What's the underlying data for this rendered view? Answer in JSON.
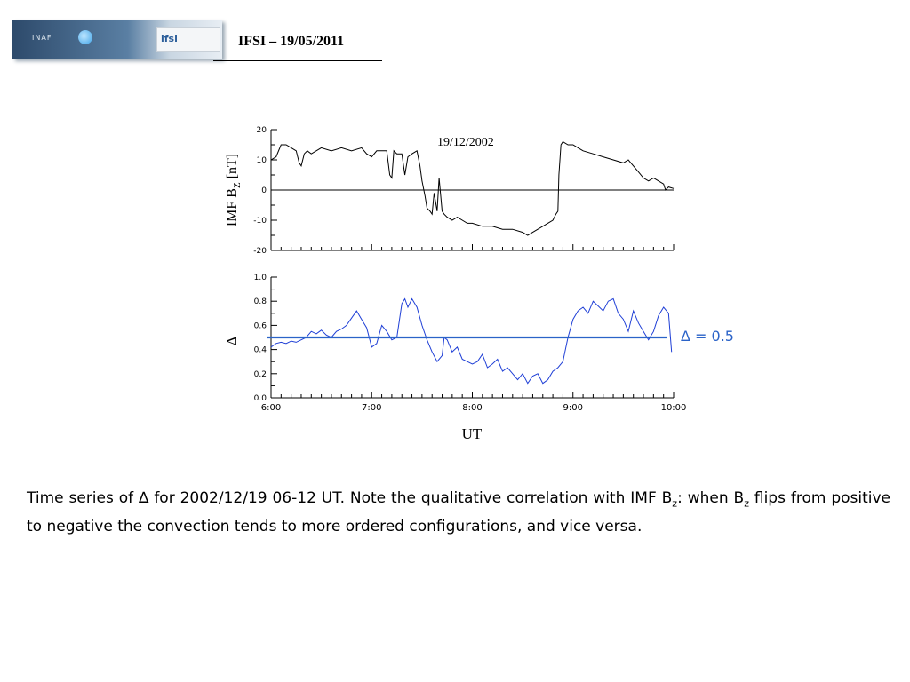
{
  "header": {
    "logo_text": "INAF",
    "logo_text2": "ifsi",
    "title": "IFSI – 19/05/2011"
  },
  "chart_data": [
    {
      "type": "line",
      "title": "19/12/2002",
      "ylabel": "IMF B",
      "ylabel_sub": "Z",
      "ylabel_unit": " [nT]",
      "ylim": [
        -20,
        20
      ],
      "yticks": [
        "20",
        "10",
        "0",
        "-10",
        "-20"
      ],
      "xlim": [
        6.0,
        10.0
      ],
      "reference_line": 0,
      "series": [
        {
          "x": [
            6.0,
            6.05,
            6.1,
            6.15,
            6.2,
            6.25,
            6.28,
            6.3,
            6.33,
            6.36,
            6.4,
            6.5,
            6.6,
            6.7,
            6.8,
            6.9,
            6.95,
            7.0,
            7.05,
            7.1,
            7.15,
            7.18,
            7.2,
            7.22,
            7.25,
            7.3,
            7.33,
            7.36,
            7.4,
            7.45,
            7.48,
            7.5,
            7.53,
            7.55,
            7.58,
            7.6,
            7.62,
            7.65,
            7.67,
            7.7,
            7.72,
            7.75,
            7.8,
            7.85,
            7.9,
            7.95,
            8.0,
            8.1,
            8.2,
            8.3,
            8.4,
            8.5,
            8.55,
            8.6,
            8.65,
            8.7,
            8.75,
            8.8,
            8.83,
            8.85,
            8.86,
            8.88,
            8.9,
            8.95,
            9.0,
            9.05,
            9.1,
            9.2,
            9.3,
            9.4,
            9.5,
            9.55,
            9.6,
            9.65,
            9.7,
            9.75,
            9.8,
            9.85,
            9.9,
            9.92,
            9.95,
            10.0
          ],
          "y": [
            10,
            11,
            15,
            15,
            14,
            13,
            9,
            8,
            12,
            13,
            12,
            14,
            13,
            14,
            13,
            14,
            12,
            11,
            13,
            13,
            13,
            5,
            4,
            13,
            12,
            12,
            5,
            11,
            12,
            13,
            8,
            3,
            -2,
            -6,
            -7,
            -8,
            -1,
            -7,
            4,
            -7,
            -8,
            -9,
            -10,
            -9,
            -10,
            -11,
            -11,
            -12,
            -12,
            -13,
            -13,
            -14,
            -15,
            -14,
            -13,
            -12,
            -11,
            -10,
            -8,
            -7,
            5,
            15,
            16,
            15,
            15,
            14,
            13,
            12,
            11,
            10,
            9,
            10,
            8,
            6,
            4,
            3,
            4,
            3,
            2,
            0,
            1,
            0.5
          ]
        }
      ]
    },
    {
      "type": "line",
      "ylabel": "Δ",
      "xlabel": "UT",
      "ylim": [
        0.0,
        1.0
      ],
      "yticks": [
        "1.0",
        "0.8",
        "0.6",
        "0.4",
        "0.2",
        "0.0"
      ],
      "xticks": [
        "6:00",
        "7:00",
        "8:00",
        "9:00",
        "10:00"
      ],
      "threshold": 0.5,
      "threshold_label": "Δ = 0.5",
      "series": [
        {
          "x": [
            6.0,
            6.05,
            6.1,
            6.15,
            6.2,
            6.25,
            6.3,
            6.35,
            6.4,
            6.45,
            6.5,
            6.55,
            6.6,
            6.65,
            6.7,
            6.75,
            6.8,
            6.85,
            6.9,
            6.95,
            7.0,
            7.05,
            7.1,
            7.15,
            7.2,
            7.25,
            7.3,
            7.33,
            7.36,
            7.4,
            7.45,
            7.5,
            7.55,
            7.6,
            7.65,
            7.7,
            7.72,
            7.75,
            7.8,
            7.85,
            7.9,
            7.95,
            8.0,
            8.05,
            8.1,
            8.15,
            8.2,
            8.25,
            8.3,
            8.35,
            8.4,
            8.45,
            8.5,
            8.55,
            8.6,
            8.65,
            8.7,
            8.75,
            8.8,
            8.85,
            8.9,
            8.95,
            9.0,
            9.05,
            9.1,
            9.15,
            9.2,
            9.25,
            9.3,
            9.35,
            9.4,
            9.45,
            9.5,
            9.55,
            9.6,
            9.65,
            9.7,
            9.75,
            9.8,
            9.85,
            9.9,
            9.95,
            9.98
          ],
          "y": [
            0.42,
            0.45,
            0.46,
            0.45,
            0.47,
            0.46,
            0.48,
            0.5,
            0.55,
            0.53,
            0.56,
            0.52,
            0.5,
            0.55,
            0.57,
            0.6,
            0.66,
            0.72,
            0.65,
            0.58,
            0.42,
            0.45,
            0.6,
            0.55,
            0.48,
            0.5,
            0.78,
            0.82,
            0.75,
            0.82,
            0.75,
            0.6,
            0.48,
            0.38,
            0.3,
            0.35,
            0.5,
            0.48,
            0.38,
            0.42,
            0.32,
            0.3,
            0.28,
            0.3,
            0.36,
            0.25,
            0.28,
            0.32,
            0.22,
            0.25,
            0.2,
            0.15,
            0.2,
            0.12,
            0.18,
            0.2,
            0.12,
            0.15,
            0.22,
            0.25,
            0.3,
            0.5,
            0.65,
            0.72,
            0.75,
            0.7,
            0.8,
            0.76,
            0.72,
            0.8,
            0.82,
            0.7,
            0.65,
            0.55,
            0.72,
            0.62,
            0.55,
            0.48,
            0.55,
            0.68,
            0.75,
            0.7,
            0.38
          ]
        }
      ]
    }
  ],
  "caption": {
    "part1": "Time series of ∆ for 2002/12/19 06-12 UT. Note the qualitative correlation with IMF B",
    "sub1": "z",
    "part2": ": when B",
    "sub2": "z",
    "part3": " flips from positive to negative the convection tends to more ordered configurations, and vice versa."
  }
}
